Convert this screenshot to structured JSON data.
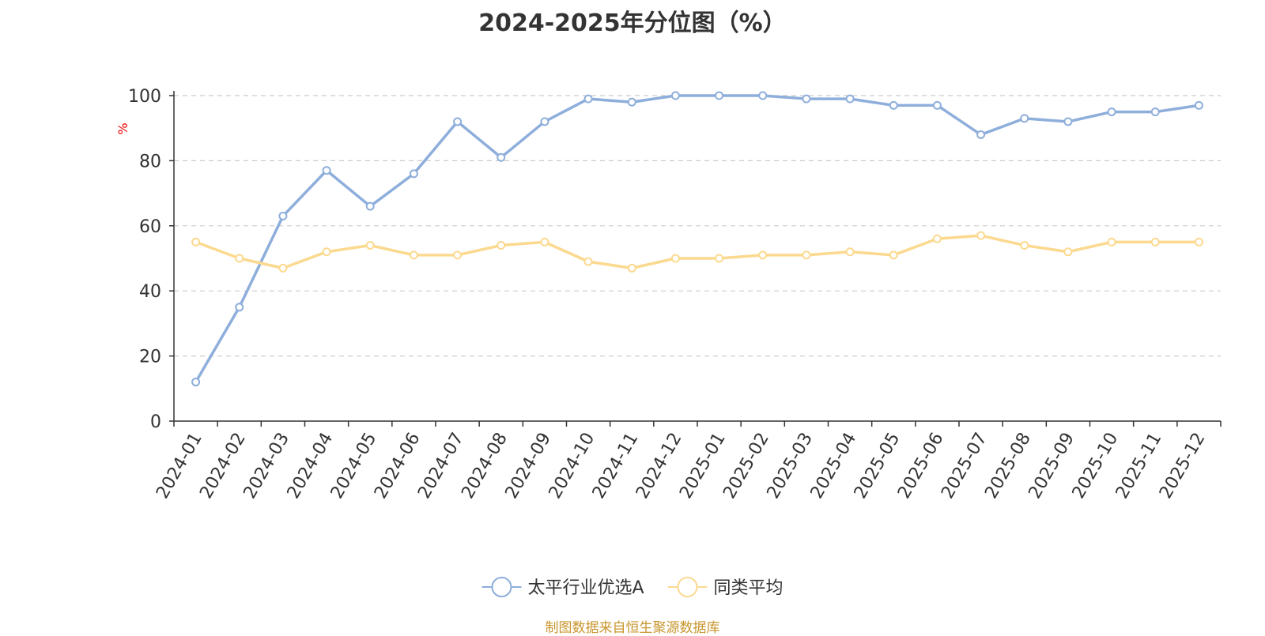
{
  "chart_data": {
    "type": "line",
    "title": "2024-2025年分位图（%）",
    "ylabel": "%",
    "ylim": [
      0,
      100
    ],
    "yticks": [
      0,
      20,
      40,
      60,
      80,
      100
    ],
    "grid": true,
    "legend_position": "bottom-center",
    "categories": [
      "2024-01",
      "2024-02",
      "2024-03",
      "2024-04",
      "2024-05",
      "2024-06",
      "2024-07",
      "2024-08",
      "2024-09",
      "2024-10",
      "2024-11",
      "2024-12",
      "2025-01",
      "2025-02",
      "2025-03",
      "2025-04",
      "2025-05",
      "2025-06",
      "2025-07",
      "2025-08",
      "2025-09",
      "2025-10",
      "2025-11",
      "2025-12"
    ],
    "series": [
      {
        "name": "太平行业优选A",
        "color": "#8eaedb",
        "values": [
          12,
          35,
          63,
          77,
          66,
          76,
          92,
          81,
          92,
          99,
          98,
          100,
          100,
          100,
          99,
          99,
          97,
          97,
          88,
          93,
          92,
          95,
          95,
          97
        ]
      },
      {
        "name": "同类平均",
        "color": "#fbd98f",
        "values": [
          55,
          50,
          47,
          52,
          54,
          51,
          51,
          54,
          55,
          49,
          47,
          50,
          50,
          51,
          51,
          52,
          51,
          56,
          57,
          54,
          52,
          55,
          55,
          55
        ]
      }
    ]
  },
  "colors": {
    "unit_label": "#ee0000",
    "source_note": "#c8962e"
  },
  "source_note": "制图数据来自恒生聚源数据库"
}
